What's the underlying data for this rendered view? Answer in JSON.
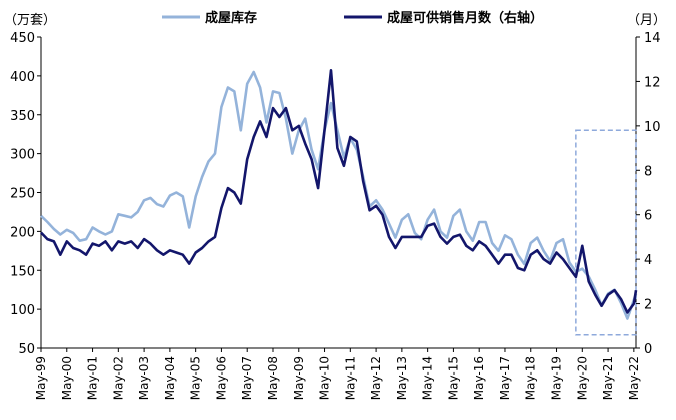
{
  "chart_data": {
    "type": "line",
    "y_left_unit": "（万套）",
    "y_right_unit": "（月）",
    "y_left_lim": [
      50,
      450
    ],
    "y_left_ticks": [
      50,
      100,
      150,
      200,
      250,
      300,
      350,
      400,
      450
    ],
    "y_right_lim": [
      0,
      14
    ],
    "y_right_ticks": [
      0,
      2,
      4,
      6,
      8,
      10,
      12,
      14
    ],
    "x_range": [
      "1999-05",
      "2022-06"
    ],
    "x_ticks": [
      "May-99",
      "May-00",
      "May-01",
      "May-02",
      "May-03",
      "May-04",
      "May-05",
      "May-06",
      "May-07",
      "May-08",
      "May-09",
      "May-10",
      "May-11",
      "May-12",
      "May-13",
      "May-14",
      "May-15",
      "May-16",
      "May-17",
      "May-18",
      "May-19",
      "May-20",
      "May-21",
      "May-22"
    ],
    "legend": [
      "成屋库存",
      "成屋可供销售月数（右轴）"
    ],
    "series": [
      {
        "name": "成屋库存",
        "axis": "left",
        "color": "#94B3DA",
        "points": [
          [
            "1999-05",
            220
          ],
          [
            "1999-08",
            212
          ],
          [
            "1999-11",
            203
          ],
          [
            "2000-02",
            196
          ],
          [
            "2000-05",
            202
          ],
          [
            "2000-08",
            198
          ],
          [
            "2000-11",
            188
          ],
          [
            "2001-02",
            190
          ],
          [
            "2001-05",
            205
          ],
          [
            "2001-08",
            200
          ],
          [
            "2001-11",
            196
          ],
          [
            "2002-02",
            200
          ],
          [
            "2002-05",
            222
          ],
          [
            "2002-08",
            220
          ],
          [
            "2002-11",
            218
          ],
          [
            "2003-02",
            225
          ],
          [
            "2003-05",
            240
          ],
          [
            "2003-08",
            243
          ],
          [
            "2003-11",
            235
          ],
          [
            "2004-02",
            232
          ],
          [
            "2004-05",
            246
          ],
          [
            "2004-08",
            250
          ],
          [
            "2004-11",
            245
          ],
          [
            "2005-02",
            205
          ],
          [
            "2005-05",
            245
          ],
          [
            "2005-08",
            270
          ],
          [
            "2005-11",
            290
          ],
          [
            "2006-02",
            300
          ],
          [
            "2006-05",
            360
          ],
          [
            "2006-08",
            385
          ],
          [
            "2006-11",
            380
          ],
          [
            "2007-02",
            330
          ],
          [
            "2007-05",
            390
          ],
          [
            "2007-08",
            405
          ],
          [
            "2007-11",
            385
          ],
          [
            "2008-02",
            340
          ],
          [
            "2008-05",
            380
          ],
          [
            "2008-08",
            378
          ],
          [
            "2008-11",
            345
          ],
          [
            "2009-02",
            300
          ],
          [
            "2009-05",
            330
          ],
          [
            "2009-08",
            345
          ],
          [
            "2009-11",
            305
          ],
          [
            "2010-02",
            280
          ],
          [
            "2010-05",
            330
          ],
          [
            "2010-08",
            365
          ],
          [
            "2010-11",
            330
          ],
          [
            "2011-02",
            295
          ],
          [
            "2011-05",
            320
          ],
          [
            "2011-08",
            305
          ],
          [
            "2011-11",
            270
          ],
          [
            "2012-02",
            232
          ],
          [
            "2012-05",
            240
          ],
          [
            "2012-08",
            228
          ],
          [
            "2012-11",
            210
          ],
          [
            "2013-02",
            192
          ],
          [
            "2013-05",
            215
          ],
          [
            "2013-08",
            222
          ],
          [
            "2013-11",
            198
          ],
          [
            "2014-02",
            190
          ],
          [
            "2014-05",
            215
          ],
          [
            "2014-08",
            228
          ],
          [
            "2014-11",
            200
          ],
          [
            "2015-02",
            192
          ],
          [
            "2015-05",
            220
          ],
          [
            "2015-08",
            228
          ],
          [
            "2015-11",
            200
          ],
          [
            "2016-02",
            188
          ],
          [
            "2016-05",
            212
          ],
          [
            "2016-08",
            212
          ],
          [
            "2016-11",
            185
          ],
          [
            "2017-02",
            175
          ],
          [
            "2017-05",
            195
          ],
          [
            "2017-08",
            190
          ],
          [
            "2017-11",
            170
          ],
          [
            "2018-02",
            158
          ],
          [
            "2018-05",
            185
          ],
          [
            "2018-08",
            192
          ],
          [
            "2018-11",
            175
          ],
          [
            "2019-02",
            162
          ],
          [
            "2019-05",
            185
          ],
          [
            "2019-08",
            190
          ],
          [
            "2019-11",
            160
          ],
          [
            "2020-02",
            148
          ],
          [
            "2020-05",
            152
          ],
          [
            "2020-08",
            142
          ],
          [
            "2020-11",
            125
          ],
          [
            "2021-02",
            105
          ],
          [
            "2021-05",
            120
          ],
          [
            "2021-08",
            125
          ],
          [
            "2021-11",
            108
          ],
          [
            "2022-02",
            88
          ],
          [
            "2022-05",
            112
          ],
          [
            "2022-06",
            120
          ]
        ]
      },
      {
        "name": "成屋可供销售月数（右轴）",
        "axis": "right",
        "color": "#13166B",
        "points": [
          [
            "1999-05",
            5.2
          ],
          [
            "1999-08",
            4.9
          ],
          [
            "1999-11",
            4.8
          ],
          [
            "2000-02",
            4.2
          ],
          [
            "2000-05",
            4.8
          ],
          [
            "2000-08",
            4.5
          ],
          [
            "2000-11",
            4.4
          ],
          [
            "2001-02",
            4.2
          ],
          [
            "2001-05",
            4.7
          ],
          [
            "2001-08",
            4.6
          ],
          [
            "2001-11",
            4.8
          ],
          [
            "2002-02",
            4.4
          ],
          [
            "2002-05",
            4.8
          ],
          [
            "2002-08",
            4.7
          ],
          [
            "2002-11",
            4.8
          ],
          [
            "2003-02",
            4.5
          ],
          [
            "2003-05",
            4.9
          ],
          [
            "2003-08",
            4.7
          ],
          [
            "2003-11",
            4.4
          ],
          [
            "2004-02",
            4.2
          ],
          [
            "2004-05",
            4.4
          ],
          [
            "2004-08",
            4.3
          ],
          [
            "2004-11",
            4.2
          ],
          [
            "2005-02",
            3.8
          ],
          [
            "2005-05",
            4.3
          ],
          [
            "2005-08",
            4.5
          ],
          [
            "2005-11",
            4.8
          ],
          [
            "2006-02",
            5.0
          ],
          [
            "2006-05",
            6.3
          ],
          [
            "2006-08",
            7.2
          ],
          [
            "2006-11",
            7.0
          ],
          [
            "2007-02",
            6.5
          ],
          [
            "2007-05",
            8.5
          ],
          [
            "2007-08",
            9.5
          ],
          [
            "2007-11",
            10.2
          ],
          [
            "2008-02",
            9.5
          ],
          [
            "2008-05",
            10.8
          ],
          [
            "2008-08",
            10.4
          ],
          [
            "2008-11",
            10.8
          ],
          [
            "2009-02",
            9.8
          ],
          [
            "2009-05",
            10.0
          ],
          [
            "2009-08",
            9.2
          ],
          [
            "2009-11",
            8.5
          ],
          [
            "2010-02",
            7.2
          ],
          [
            "2010-05",
            9.8
          ],
          [
            "2010-08",
            12.5
          ],
          [
            "2010-11",
            9.0
          ],
          [
            "2011-02",
            8.2
          ],
          [
            "2011-05",
            9.5
          ],
          [
            "2011-08",
            9.3
          ],
          [
            "2011-11",
            7.5
          ],
          [
            "2012-02",
            6.2
          ],
          [
            "2012-05",
            6.4
          ],
          [
            "2012-08",
            6.0
          ],
          [
            "2012-11",
            5.0
          ],
          [
            "2013-02",
            4.5
          ],
          [
            "2013-05",
            5.0
          ],
          [
            "2013-08",
            5.0
          ],
          [
            "2013-11",
            5.0
          ],
          [
            "2014-02",
            5.0
          ],
          [
            "2014-05",
            5.5
          ],
          [
            "2014-08",
            5.6
          ],
          [
            "2014-11",
            5.0
          ],
          [
            "2015-02",
            4.7
          ],
          [
            "2015-05",
            5.0
          ],
          [
            "2015-08",
            5.1
          ],
          [
            "2015-11",
            4.6
          ],
          [
            "2016-02",
            4.4
          ],
          [
            "2016-05",
            4.8
          ],
          [
            "2016-08",
            4.6
          ],
          [
            "2016-11",
            4.2
          ],
          [
            "2017-02",
            3.8
          ],
          [
            "2017-05",
            4.2
          ],
          [
            "2017-08",
            4.2
          ],
          [
            "2017-11",
            3.6
          ],
          [
            "2018-02",
            3.5
          ],
          [
            "2018-05",
            4.2
          ],
          [
            "2018-08",
            4.4
          ],
          [
            "2018-11",
            4.0
          ],
          [
            "2019-02",
            3.8
          ],
          [
            "2019-05",
            4.3
          ],
          [
            "2019-08",
            4.0
          ],
          [
            "2019-11",
            3.6
          ],
          [
            "2020-02",
            3.2
          ],
          [
            "2020-05",
            4.6
          ],
          [
            "2020-08",
            3.0
          ],
          [
            "2020-11",
            2.4
          ],
          [
            "2021-02",
            1.9
          ],
          [
            "2021-05",
            2.4
          ],
          [
            "2021-08",
            2.6
          ],
          [
            "2021-11",
            2.2
          ],
          [
            "2022-02",
            1.6
          ],
          [
            "2022-05",
            2.0
          ],
          [
            "2022-06",
            2.6
          ]
        ]
      }
    ],
    "highlight": {
      "x": [
        "2020-02",
        "2022-06"
      ],
      "y_left": [
        67,
        330
      ],
      "color": "#8EA9DB",
      "style": "dashed"
    },
    "grid": false
  }
}
